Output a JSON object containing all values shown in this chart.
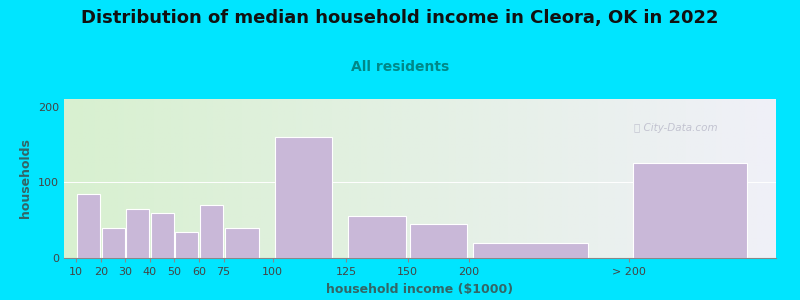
{
  "title": "Distribution of median household income in Cleora, OK in 2022",
  "subtitle": "All residents",
  "xlabel": "household income ($1000)",
  "ylabel": "households",
  "bar_labels": [
    "10",
    "20",
    "30",
    "40",
    "50",
    "60",
    "75",
    "100",
    "125",
    "150",
    "200",
    "> 200"
  ],
  "bar_heights": [
    85,
    40,
    65,
    60,
    35,
    70,
    40,
    160,
    55,
    45,
    20,
    125
  ],
  "bar_widths": [
    10,
    10,
    10,
    10,
    10,
    10,
    15,
    25,
    25,
    25,
    50,
    50
  ],
  "bar_left_edges": [
    5,
    15,
    25,
    35,
    45,
    55,
    65,
    85,
    115,
    140,
    165,
    230
  ],
  "bar_color": "#c9b8d8",
  "bar_edgecolor": "#ffffff",
  "ylim": [
    0,
    210
  ],
  "yticks": [
    0,
    100,
    200
  ],
  "xlim": [
    0,
    290
  ],
  "background_outer": "#00e5ff",
  "bg_left_color": "#d8f0d0",
  "bg_right_color": "#f0f0f8",
  "title_fontsize": 13,
  "subtitle_fontsize": 10,
  "axis_label_fontsize": 9,
  "tick_fontsize": 8,
  "watermark_text": "ⓘ City-Data.com",
  "watermark_color": "#b8b8c8",
  "title_color": "#111111",
  "subtitle_color": "#008888",
  "axis_label_color": "#336666"
}
